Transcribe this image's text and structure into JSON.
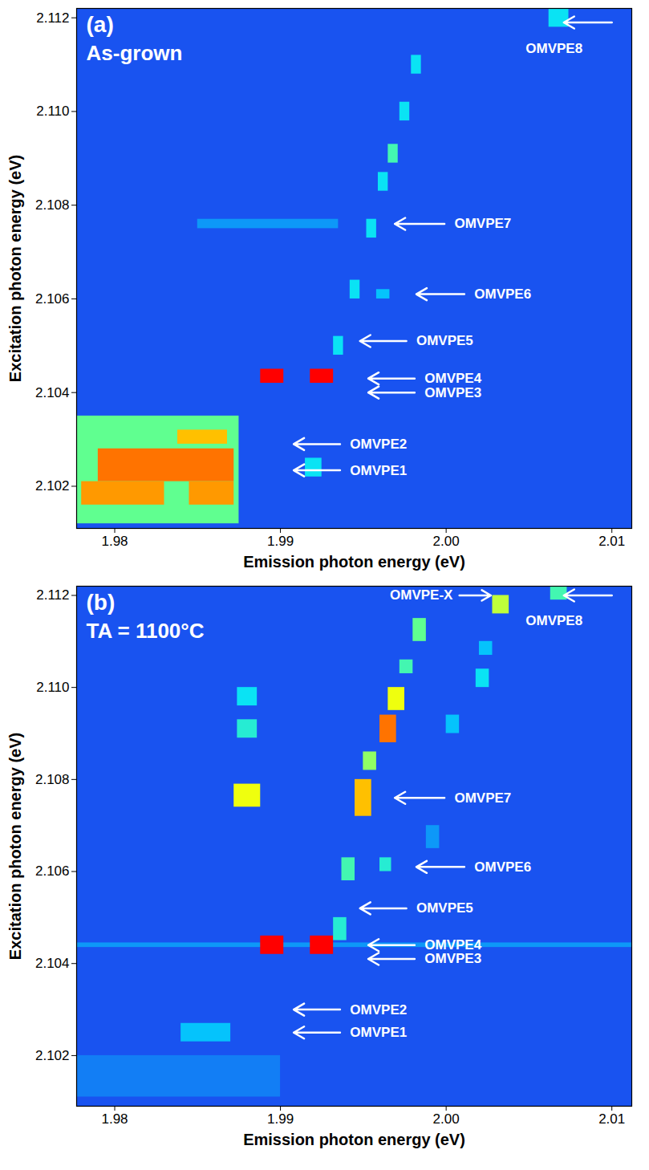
{
  "chart_data": [
    {
      "type": "heatmap",
      "panel": "(a)",
      "subtitle": "As-grown",
      "xlabel": "Emission photon energy (eV)",
      "ylabel": "Excitation photon energy (eV)",
      "xlim": [
        1.9777,
        2.0112
      ],
      "xticks": [
        1.98,
        1.99,
        {
          "value": 2,
          "label": "2.00"
        },
        2.01
      ],
      "ylim": [
        2.1011,
        2.1122
      ],
      "yticks": [
        2.102,
        2.104,
        2.106,
        2.108,
        {
          "value": 2.11,
          "label": "2.110"
        },
        2.112
      ],
      "zlim": [
        0,
        1
      ],
      "background_value": 0.17,
      "cells": [
        {
          "x1": 1.9777,
          "x2": 1.9875,
          "y1": 2.1012,
          "y2": 2.1035,
          "value": 0.5
        },
        {
          "x1": 1.979,
          "x2": 1.9872,
          "y1": 2.1021,
          "y2": 2.1028,
          "value": 0.85
        },
        {
          "x1": 1.978,
          "x2": 1.983,
          "y1": 2.1016,
          "y2": 2.1021,
          "value": 0.8
        },
        {
          "x1": 1.9845,
          "x2": 1.9872,
          "y1": 2.1016,
          "y2": 2.1021,
          "value": 0.8
        },
        {
          "x1": 1.9838,
          "x2": 1.9868,
          "y1": 2.1029,
          "y2": 2.1032,
          "value": 0.75
        },
        {
          "x1": 1.9888,
          "x2": 1.9902,
          "y1": 2.1042,
          "y2": 2.1045,
          "value": 1
        },
        {
          "x1": 1.9918,
          "x2": 1.9932,
          "y1": 2.1042,
          "y2": 2.1045,
          "value": 1
        },
        {
          "x1": 1.9915,
          "x2": 1.9925,
          "y1": 2.1022,
          "y2": 2.1026,
          "value": 0.35
        },
        {
          "x1": 1.9932,
          "x2": 1.9938,
          "y1": 2.1048,
          "y2": 2.1052,
          "value": 0.35
        },
        {
          "x1": 1.9942,
          "x2": 1.9948,
          "y1": 2.106,
          "y2": 2.1064,
          "value": 0.35
        },
        {
          "x1": 1.9952,
          "x2": 1.9958,
          "y1": 2.1073,
          "y2": 2.1077,
          "value": 0.35
        },
        {
          "x1": 1.9959,
          "x2": 1.9965,
          "y1": 2.1083,
          "y2": 2.1087,
          "value": 0.35
        },
        {
          "x1": 1.9965,
          "x2": 1.9971,
          "y1": 2.1089,
          "y2": 2.1093,
          "value": 0.45
        },
        {
          "x1": 1.9972,
          "x2": 1.9978,
          "y1": 2.1098,
          "y2": 2.1102,
          "value": 0.35
        },
        {
          "x1": 1.9979,
          "x2": 1.9985,
          "y1": 2.1108,
          "y2": 2.1112,
          "value": 0.35
        },
        {
          "x1": 1.985,
          "x2": 1.9935,
          "y1": 2.1075,
          "y2": 2.1077,
          "value": 0.25
        },
        {
          "x1": 2.0062,
          "x2": 2.0074,
          "y1": 2.1118,
          "y2": 2.1122,
          "value": 0.35
        },
        {
          "x1": 1.9958,
          "x2": 1.9966,
          "y1": 2.106,
          "y2": 2.1062,
          "value": 0.3
        }
      ],
      "annotations": [
        {
          "text": "OMVPE1",
          "x_tip": 1.9908,
          "x_tail": 1.9936,
          "y": 2.10234,
          "text_x": 1.9942,
          "text_y": 2.10234
        },
        {
          "text": "OMVPE2",
          "x_tip": 1.9908,
          "x_tail": 1.9936,
          "y": 2.1029,
          "text_x": 1.9942,
          "text_y": 2.1029
        },
        {
          "text": "OMVPE3",
          "x_tip": 1.9953,
          "x_tail": 1.9981,
          "y": 2.104,
          "text_x": 1.9987,
          "text_y": 2.104
        },
        {
          "text": "OMVPE4",
          "x_tip": 1.9953,
          "x_tail": 1.9981,
          "y": 2.1043,
          "text_x": 1.9987,
          "text_y": 2.1043
        },
        {
          "text": "OMVPE5",
          "x_tip": 1.9948,
          "x_tail": 1.9976,
          "y": 2.1051,
          "text_x": 1.9982,
          "text_y": 2.1051
        },
        {
          "text": "OMVPE6",
          "x_tip": 1.9982,
          "x_tail": 2.0011,
          "y": 2.1061,
          "text_x": 2.0017,
          "text_y": 2.1061
        },
        {
          "text": "OMVPE7",
          "x_tip": 1.9969,
          "x_tail": 1.9999,
          "y": 2.1076,
          "text_x": 2.0005,
          "text_y": 2.1076
        },
        {
          "text": "OMVPE8",
          "x_tip": 2.0071,
          "x_tail": 2.01,
          "y": 2.1119,
          "text_x": 2.0048,
          "text_y": 2.11135
        }
      ]
    },
    {
      "type": "heatmap",
      "panel": "(b)",
      "subtitle": "TA = 1100°C",
      "xlabel": "Emission photon energy (eV)",
      "ylabel": "Excitation photon energy (eV)",
      "xlim": [
        1.9777,
        2.0112
      ],
      "xticks": [
        1.98,
        1.99,
        {
          "value": 2,
          "label": "2.00"
        },
        2.01
      ],
      "ylim": [
        2.1009,
        2.1122
      ],
      "yticks": [
        2.102,
        2.104,
        2.106,
        2.108,
        {
          "value": 2.11,
          "label": "2.110"
        },
        2.112
      ],
      "zlim": [
        0,
        1
      ],
      "background_value": 0.17,
      "cells": [
        {
          "x1": 1.9777,
          "x2": 1.99,
          "y1": 2.1011,
          "y2": 2.102,
          "value": 0.22
        },
        {
          "x1": 1.984,
          "x2": 1.987,
          "y1": 2.1023,
          "y2": 2.1027,
          "value": 0.3
        },
        {
          "x1": 1.9777,
          "x2": 2.0112,
          "y1": 2.10435,
          "y2": 2.10445,
          "value": 0.25
        },
        {
          "x1": 1.9888,
          "x2": 1.9902,
          "y1": 2.1042,
          "y2": 2.1046,
          "value": 1
        },
        {
          "x1": 1.9918,
          "x2": 1.9932,
          "y1": 2.1042,
          "y2": 2.1046,
          "value": 1
        },
        {
          "x1": 1.9872,
          "x2": 1.9888,
          "y1": 2.1074,
          "y2": 2.1079,
          "value": 0.65
        },
        {
          "x1": 1.9874,
          "x2": 1.9886,
          "y1": 2.1089,
          "y2": 2.1093,
          "value": 0.4
        },
        {
          "x1": 1.9874,
          "x2": 1.9886,
          "y1": 2.1096,
          "y2": 2.11,
          "value": 0.35
        },
        {
          "x1": 1.9932,
          "x2": 1.994,
          "y1": 2.1045,
          "y2": 2.105,
          "value": 0.4
        },
        {
          "x1": 1.9937,
          "x2": 1.9945,
          "y1": 2.1058,
          "y2": 2.1063,
          "value": 0.45
        },
        {
          "x1": 1.9945,
          "x2": 1.9955,
          "y1": 2.1072,
          "y2": 2.108,
          "value": 0.75
        },
        {
          "x1": 1.995,
          "x2": 1.9958,
          "y1": 2.1082,
          "y2": 2.1086,
          "value": 0.55
        },
        {
          "x1": 1.996,
          "x2": 1.997,
          "y1": 2.1088,
          "y2": 2.1094,
          "value": 0.85
        },
        {
          "x1": 1.9965,
          "x2": 1.9975,
          "y1": 2.1095,
          "y2": 2.11,
          "value": 0.65
        },
        {
          "x1": 1.9972,
          "x2": 1.998,
          "y1": 2.1103,
          "y2": 2.1106,
          "value": 0.45
        },
        {
          "x1": 1.998,
          "x2": 1.9988,
          "y1": 2.111,
          "y2": 2.1115,
          "value": 0.5
        },
        {
          "x1": 1.996,
          "x2": 1.9967,
          "y1": 2.106,
          "y2": 2.1063,
          "value": 0.4
        },
        {
          "x1": 1.9988,
          "x2": 1.9996,
          "y1": 2.1065,
          "y2": 2.107,
          "value": 0.25
        },
        {
          "x1": 2.0,
          "x2": 2.0008,
          "y1": 2.109,
          "y2": 2.1094,
          "value": 0.3
        },
        {
          "x1": 2.0018,
          "x2": 2.0026,
          "y1": 2.11,
          "y2": 2.1104,
          "value": 0.35
        },
        {
          "x1": 2.002,
          "x2": 2.0028,
          "y1": 2.1107,
          "y2": 2.111,
          "value": 0.3
        },
        {
          "x1": 2.0028,
          "x2": 2.0038,
          "y1": 2.1116,
          "y2": 2.112,
          "value": 0.6
        },
        {
          "x1": 2.0063,
          "x2": 2.0073,
          "y1": 2.1119,
          "y2": 2.1122,
          "value": 0.45
        }
      ],
      "annotations": [
        {
          "text": "OMVPE1",
          "x_tip": 1.9908,
          "x_tail": 1.9936,
          "y": 2.1025,
          "text_x": 1.9942,
          "text_y": 2.1025
        },
        {
          "text": "OMVPE2",
          "x_tip": 1.9908,
          "x_tail": 1.9936,
          "y": 2.103,
          "text_x": 1.9942,
          "text_y": 2.103
        },
        {
          "text": "OMVPE3",
          "x_tip": 1.9953,
          "x_tail": 1.9981,
          "y": 2.1041,
          "text_x": 1.9987,
          "text_y": 2.1041
        },
        {
          "text": "OMVPE4",
          "x_tip": 1.9953,
          "x_tail": 1.9981,
          "y": 2.1044,
          "text_x": 1.9987,
          "text_y": 2.1044
        },
        {
          "text": "OMVPE5",
          "x_tip": 1.9948,
          "x_tail": 1.9976,
          "y": 2.1052,
          "text_x": 1.9982,
          "text_y": 2.1052
        },
        {
          "text": "OMVPE6",
          "x_tip": 1.9982,
          "x_tail": 2.0011,
          "y": 2.1061,
          "text_x": 2.0017,
          "text_y": 2.1061
        },
        {
          "text": "OMVPE7",
          "x_tip": 1.9969,
          "x_tail": 1.9999,
          "y": 2.1076,
          "text_x": 2.0005,
          "text_y": 2.1076
        },
        {
          "text": "OMVPE8",
          "x_tip": 2.0071,
          "x_tail": 2.01,
          "y": 2.112,
          "text_x": 2.0048,
          "text_y": 2.11145
        },
        {
          "text": "OMVPE-X",
          "x_tip": 2.0027,
          "x_tail": 2.0008,
          "y": 2.112,
          "text_x": 2.0004,
          "text_y": 2.112
        }
      ]
    }
  ]
}
